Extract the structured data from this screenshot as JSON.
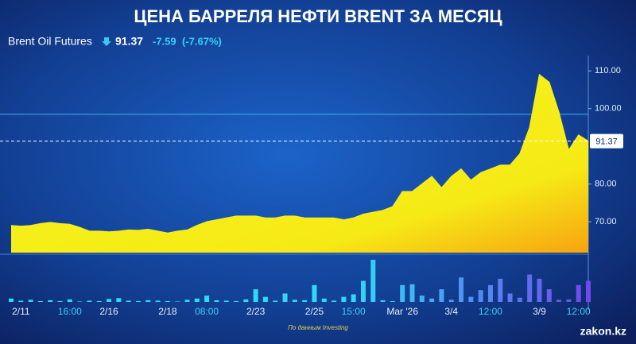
{
  "chart_data": {
    "type": "area",
    "title": "ЦЕНА БАРРЕЛЯ НЕФТИ BRENT ЗА МЕСЯЦ",
    "instrument": "Brent Oil Futures",
    "change": "-7.59",
    "change_percent": "(-7.67%)",
    "last_price": 91.37,
    "reference_line": 98.5,
    "source": "По данным Investing",
    "brand": "zakon.kz",
    "categories": [
      null,
      "2/11",
      null,
      null,
      null,
      null,
      "16:00",
      null,
      null,
      null,
      "2/16",
      null,
      null,
      null,
      null,
      null,
      "2/18",
      null,
      null,
      null,
      "08:00",
      null,
      null,
      null,
      null,
      "2/23",
      null,
      null,
      null,
      null,
      null,
      "2/25",
      null,
      null,
      null,
      "15:00",
      null,
      null,
      null,
      null,
      "Mar '26",
      null,
      null,
      null,
      null,
      "3/4",
      null,
      null,
      null,
      "12:00",
      null,
      null,
      null,
      null,
      "3/9",
      null,
      null,
      null,
      "12:00",
      null
    ],
    "series": [
      {
        "name": "Brent",
        "color": "#f6ee1a",
        "values": [
          69,
          68.8,
          69,
          69.5,
          69.8,
          69.5,
          69.3,
          68.5,
          67.5,
          67.5,
          67.3,
          67.5,
          67.8,
          67.7,
          68,
          67.5,
          67,
          67.5,
          67.8,
          69,
          70,
          70.5,
          71,
          71.5,
          71.5,
          71.5,
          71,
          71,
          71.5,
          71.5,
          71,
          71,
          71,
          71,
          70.5,
          71,
          72,
          72.5,
          73,
          74,
          78,
          78,
          80,
          82,
          79,
          82,
          84,
          81,
          83,
          84,
          85,
          85,
          88,
          95,
          109,
          107,
          99,
          89,
          93,
          91.37
        ]
      }
    ],
    "volumes": [
      8,
      3,
      5,
      2,
      4,
      2,
      6,
      1,
      3,
      2,
      7,
      9,
      3,
      2,
      4,
      3,
      2,
      1,
      5,
      8,
      15,
      4,
      3,
      2,
      6,
      30,
      12,
      3,
      20,
      5,
      4,
      40,
      8,
      3,
      12,
      18,
      50,
      100,
      4,
      2,
      40,
      42,
      15,
      8,
      30,
      5,
      58,
      12,
      28,
      40,
      55,
      20,
      10,
      65,
      55,
      30,
      5,
      6,
      40,
      50
    ],
    "volume_colors": [
      "#2fd8f6",
      "#7148ee"
    ],
    "ylim": [
      61.8,
      113
    ],
    "yticks": [
      {
        "value": 70,
        "label": "70.00"
      },
      {
        "value": 80,
        "label": "80.00"
      },
      {
        "value": 100,
        "label": "100.00"
      },
      {
        "value": 110,
        "label": "110.00"
      }
    ]
  }
}
